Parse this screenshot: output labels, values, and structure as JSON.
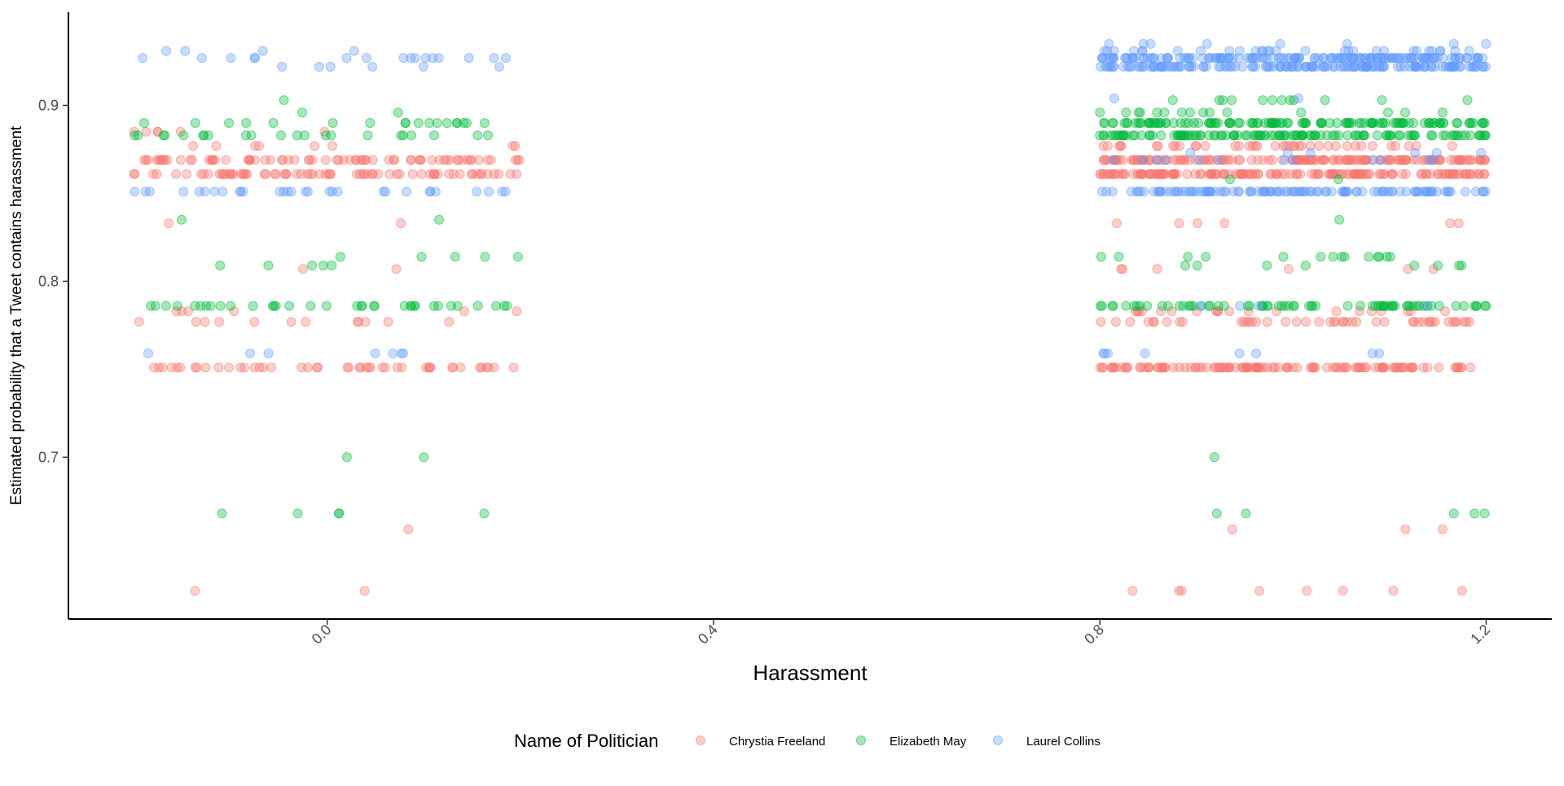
{
  "chart_data": {
    "type": "scatter",
    "title": "",
    "xlabel": "Harassment",
    "ylabel": "Estimated probability that a Tweet contains harassment",
    "xlim": [
      -0.268,
      1.268
    ],
    "ylim": [
      0.608,
      0.953
    ],
    "x_ticks": [
      0.0,
      0.4,
      0.8,
      1.2
    ],
    "x_tick_labels": [
      "0.0",
      "0.4",
      "0.8",
      "1.2"
    ],
    "y_ticks": [
      0.7,
      0.8,
      0.9
    ],
    "y_tick_labels": [
      "0.7",
      "0.8",
      "0.9"
    ],
    "grid": false,
    "point_alpha": 0.35,
    "jitter_note": "points are horizontally jittered around Harassment = 0 and Harassment = 1",
    "legend": {
      "title": "Name of Politician",
      "position": "bottom"
    },
    "series": [
      {
        "name": "Chrystia Freeland",
        "color": "#F8766D",
        "groups": [
          {
            "x_center": 0,
            "levels": [
              {
                "y": 0.869,
                "count": 70
              },
              {
                "y": 0.861,
                "count": 70
              },
              {
                "y": 0.751,
                "count": 45
              },
              {
                "y": 0.777,
                "count": 12
              },
              {
                "y": 0.783,
                "count": 6
              },
              {
                "y": 0.833,
                "count": 2
              },
              {
                "y": 0.807,
                "count": 2
              },
              {
                "y": 0.885,
                "count": 6
              },
              {
                "y": 0.877,
                "count": 8
              },
              {
                "y": 0.659,
                "count": 1
              },
              {
                "y": 0.624,
                "count": 2
              }
            ]
          },
          {
            "x_center": 1,
            "levels": [
              {
                "y": 0.869,
                "count": 150
              },
              {
                "y": 0.861,
                "count": 150
              },
              {
                "y": 0.751,
                "count": 120
              },
              {
                "y": 0.877,
                "count": 40
              },
              {
                "y": 0.777,
                "count": 45
              },
              {
                "y": 0.783,
                "count": 20
              },
              {
                "y": 0.807,
                "count": 6
              },
              {
                "y": 0.833,
                "count": 6
              },
              {
                "y": 0.659,
                "count": 3
              },
              {
                "y": 0.624,
                "count": 8
              }
            ]
          }
        ]
      },
      {
        "name": "Elizabeth May",
        "color": "#00BA38",
        "groups": [
          {
            "x_center": 0,
            "levels": [
              {
                "y": 0.89,
                "count": 18
              },
              {
                "y": 0.883,
                "count": 22
              },
              {
                "y": 0.786,
                "count": 35
              },
              {
                "y": 0.896,
                "count": 2
              },
              {
                "y": 0.903,
                "count": 1
              },
              {
                "y": 0.835,
                "count": 2
              },
              {
                "y": 0.814,
                "count": 5
              },
              {
                "y": 0.809,
                "count": 5
              },
              {
                "y": 0.7,
                "count": 2
              },
              {
                "y": 0.668,
                "count": 5
              }
            ]
          },
          {
            "x_center": 1,
            "levels": [
              {
                "y": 0.89,
                "count": 120
              },
              {
                "y": 0.883,
                "count": 120
              },
              {
                "y": 0.903,
                "count": 12
              },
              {
                "y": 0.896,
                "count": 15
              },
              {
                "y": 0.786,
                "count": 70
              },
              {
                "y": 0.814,
                "count": 14
              },
              {
                "y": 0.809,
                "count": 8
              },
              {
                "y": 0.835,
                "count": 1
              },
              {
                "y": 0.858,
                "count": 2
              },
              {
                "y": 0.7,
                "count": 1
              },
              {
                "y": 0.668,
                "count": 5
              }
            ]
          }
        ]
      },
      {
        "name": "Laurel Collins",
        "color": "#619CFF",
        "groups": [
          {
            "x_center": 0,
            "levels": [
              {
                "y": 0.851,
                "count": 30
              },
              {
                "y": 0.927,
                "count": 16
              },
              {
                "y": 0.922,
                "count": 6
              },
              {
                "y": 0.931,
                "count": 4
              },
              {
                "y": 0.759,
                "count": 7
              }
            ]
          },
          {
            "x_center": 1,
            "levels": [
              {
                "y": 0.927,
                "count": 140
              },
              {
                "y": 0.922,
                "count": 140
              },
              {
                "y": 0.931,
                "count": 30
              },
              {
                "y": 0.935,
                "count": 8
              },
              {
                "y": 0.851,
                "count": 110
              },
              {
                "y": 0.869,
                "count": 12
              },
              {
                "y": 0.873,
                "count": 6
              },
              {
                "y": 0.904,
                "count": 2
              },
              {
                "y": 0.786,
                "count": 4
              },
              {
                "y": 0.759,
                "count": 8
              }
            ]
          }
        ]
      }
    ]
  }
}
